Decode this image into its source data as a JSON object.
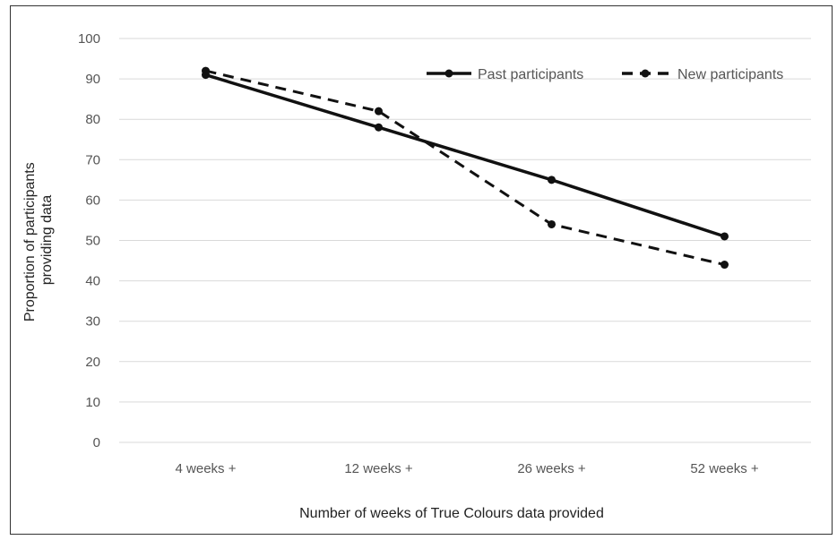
{
  "chart_data": {
    "type": "line",
    "title": "",
    "xlabel": "Number of weeks of True Colours data provided",
    "ylabel_lines": [
      "Proportion of participants",
      "providing data"
    ],
    "categories": [
      "4 weeks +",
      "12 weeks +",
      "26 weeks +",
      "52 weeks +"
    ],
    "ylim": [
      0,
      100
    ],
    "yticks": [
      "0",
      "10",
      "20",
      "30",
      "40",
      "50",
      "60",
      "70",
      "80",
      "90",
      "100"
    ],
    "grid": true,
    "legend_position": "top-right",
    "series": [
      {
        "name": "Past participants",
        "values": [
          91,
          78,
          65,
          51
        ],
        "style": "solid",
        "color": "#111111"
      },
      {
        "name": "New participants",
        "values": [
          92,
          82,
          54,
          44
        ],
        "style": "dashed",
        "color": "#111111"
      }
    ]
  }
}
